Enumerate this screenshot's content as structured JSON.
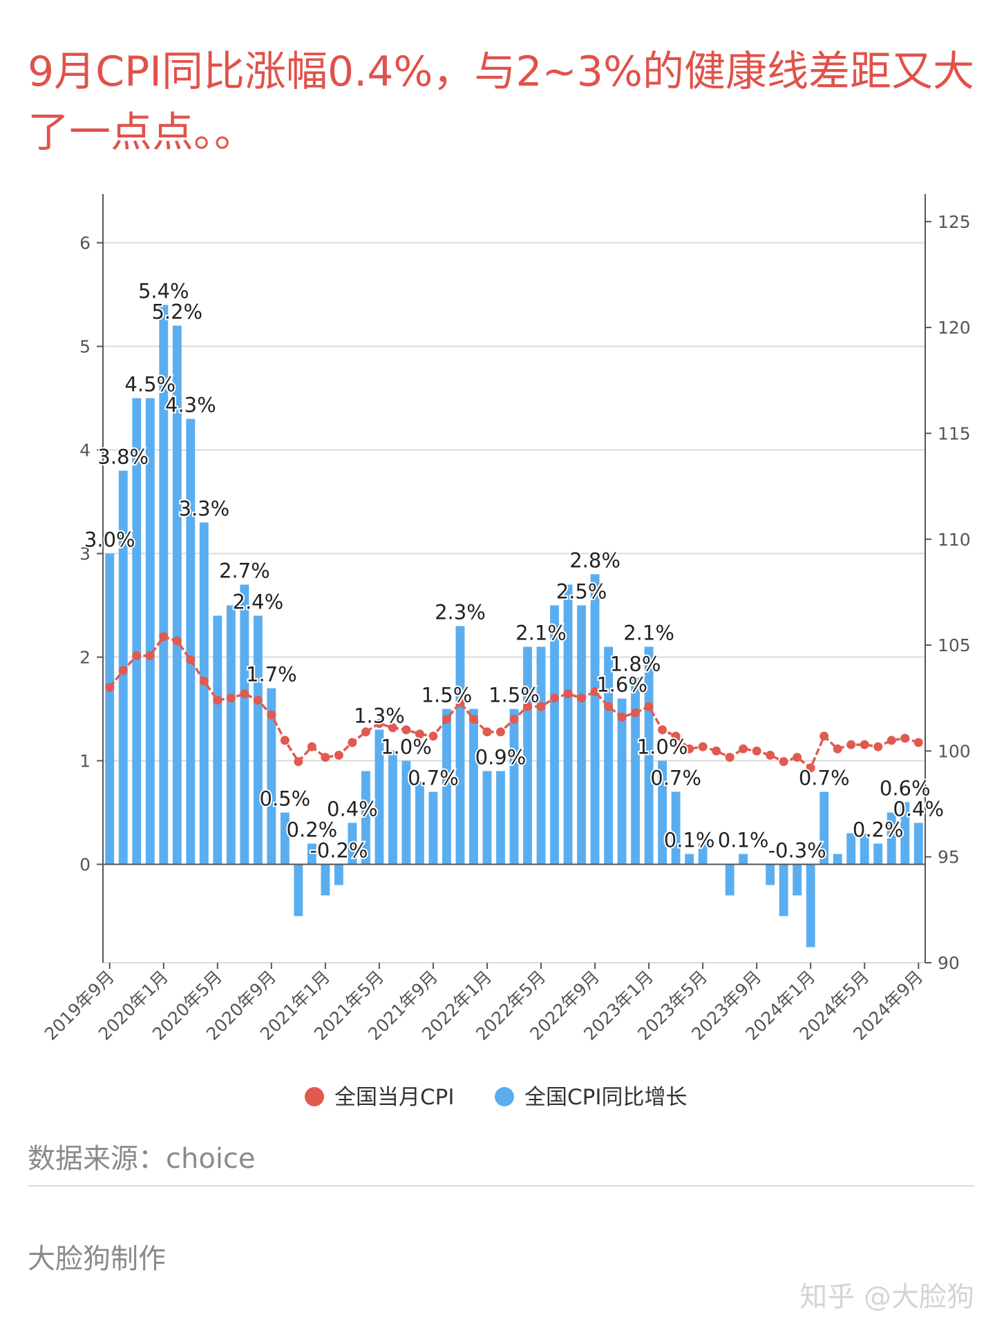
{
  "title": "9月CPI同比涨幅0.4%，与2~3%的健康线差距又大了一点点。。",
  "source": "数据来源：choice",
  "maker": "大脸狗制作",
  "watermark": "知乎 @大脸狗",
  "chart_data": {
    "type": "bar+line",
    "categories": [
      "2019年9月",
      "2019年10月",
      "2019年11月",
      "2019年12月",
      "2020年1月",
      "2020年2月",
      "2020年3月",
      "2020年4月",
      "2020年5月",
      "2020年6月",
      "2020年7月",
      "2020年8月",
      "2020年9月",
      "2020年10月",
      "2020年11月",
      "2020年12月",
      "2021年1月",
      "2021年2月",
      "2021年3月",
      "2021年4月",
      "2021年5月",
      "2021年6月",
      "2021年7月",
      "2021年8月",
      "2021年9月",
      "2021年10月",
      "2021年11月",
      "2021年12月",
      "2022年1月",
      "2022年2月",
      "2022年3月",
      "2022年4月",
      "2022年5月",
      "2022年6月",
      "2022年7月",
      "2022年8月",
      "2022年9月",
      "2022年10月",
      "2022年11月",
      "2022年12月",
      "2023年1月",
      "2023年2月",
      "2023年3月",
      "2023年4月",
      "2023年5月",
      "2023年6月",
      "2023年7月",
      "2023年8月",
      "2023年9月",
      "2023年10月",
      "2023年11月",
      "2023年12月",
      "2024年1月",
      "2024年2月",
      "2024年3月",
      "2024年4月",
      "2024年5月",
      "2024年6月",
      "2024年7月",
      "2024年8月",
      "2024年9月"
    ],
    "x_tick_labels": [
      "2019年9月",
      "2020年1月",
      "2020年5月",
      "2020年9月",
      "2021年1月",
      "2021年5月",
      "2021年9月",
      "2022年1月",
      "2022年5月",
      "2022年9月",
      "2023年1月",
      "2023年5月",
      "2023年9月",
      "2024年1月",
      "2024年5月",
      "2024年9月"
    ],
    "series": [
      {
        "name": "全国当月CPI",
        "type": "line",
        "axis": "right",
        "color": "#e05a50",
        "values": [
          103.0,
          103.8,
          104.5,
          104.5,
          105.4,
          105.2,
          104.3,
          103.3,
          102.4,
          102.5,
          102.7,
          102.4,
          101.7,
          100.5,
          99.5,
          100.2,
          99.7,
          99.8,
          100.4,
          100.9,
          101.3,
          101.1,
          101.0,
          100.8,
          100.7,
          101.5,
          102.3,
          101.5,
          100.9,
          100.9,
          101.5,
          102.1,
          102.1,
          102.5,
          102.7,
          102.5,
          102.8,
          102.1,
          101.6,
          101.8,
          102.1,
          101.0,
          100.7,
          100.1,
          100.2,
          100.0,
          99.7,
          100.1,
          100.0,
          99.8,
          99.5,
          99.7,
          99.2,
          100.7,
          100.1,
          100.3,
          100.3,
          100.2,
          100.5,
          100.6,
          100.4
        ]
      },
      {
        "name": "全国CPI同比增长",
        "type": "bar",
        "axis": "left",
        "color": "#5aaef0",
        "values": [
          3.0,
          3.8,
          4.5,
          4.5,
          5.4,
          5.2,
          4.3,
          3.3,
          2.4,
          2.5,
          2.7,
          2.4,
          1.7,
          0.5,
          -0.5,
          0.2,
          -0.3,
          -0.2,
          0.4,
          0.9,
          1.3,
          1.1,
          1.0,
          0.8,
          0.7,
          1.5,
          2.3,
          1.5,
          0.9,
          0.9,
          1.5,
          2.1,
          2.1,
          2.5,
          2.7,
          2.5,
          2.8,
          2.1,
          1.6,
          1.8,
          2.1,
          1.0,
          0.7,
          0.1,
          0.2,
          0.0,
          -0.3,
          0.1,
          0.0,
          -0.2,
          -0.5,
          -0.3,
          -0.8,
          0.7,
          0.1,
          0.3,
          0.3,
          0.2,
          0.5,
          0.6,
          0.4
        ]
      }
    ],
    "data_labels": [
      {
        "month": "2019年9月",
        "text": "3.0%"
      },
      {
        "month": "2019年10月",
        "text": "3.8%"
      },
      {
        "month": "2019年12月",
        "text": "4.5%"
      },
      {
        "month": "2020年1月",
        "text": "5.4%"
      },
      {
        "month": "2020年2月",
        "text": "5.2%"
      },
      {
        "month": "2020年3月",
        "text": "4.3%"
      },
      {
        "month": "2020年4月",
        "text": "3.3%"
      },
      {
        "month": "2020年7月",
        "text": "2.7%"
      },
      {
        "month": "2020年8月",
        "text": "2.4%"
      },
      {
        "month": "2020年9月",
        "text": "1.7%"
      },
      {
        "month": "2020年10月",
        "text": "0.5%"
      },
      {
        "month": "2020年12月",
        "text": "0.2%"
      },
      {
        "month": "2021年2月",
        "text": "-0.2%"
      },
      {
        "month": "2021年3月",
        "text": "0.4%"
      },
      {
        "month": "2021年5月",
        "text": "1.3%"
      },
      {
        "month": "2021年7月",
        "text": "1.0%"
      },
      {
        "month": "2021年9月",
        "text": "0.7%"
      },
      {
        "month": "2021年10月",
        "text": "1.5%"
      },
      {
        "month": "2021年11月",
        "text": "2.3%"
      },
      {
        "month": "2022年2月",
        "text": "0.9%"
      },
      {
        "month": "2022年3月",
        "text": "1.5%"
      },
      {
        "month": "2022年5月",
        "text": "2.1%"
      },
      {
        "month": "2022年8月",
        "text": "2.5%"
      },
      {
        "month": "2022年9月",
        "text": "2.8%"
      },
      {
        "month": "2022年11月",
        "text": "1.6%"
      },
      {
        "month": "2022年12月",
        "text": "1.8%"
      },
      {
        "month": "2023年1月",
        "text": "2.1%"
      },
      {
        "month": "2023年2月",
        "text": "1.0%"
      },
      {
        "month": "2023年3月",
        "text": "0.7%"
      },
      {
        "month": "2023年4月",
        "text": "0.1%"
      },
      {
        "month": "2023年8月",
        "text": "0.1%"
      },
      {
        "month": "2023年12月",
        "text": "-0.3%"
      },
      {
        "month": "2024年2月",
        "text": "0.7%"
      },
      {
        "month": "2024年6月",
        "text": "0.2%"
      },
      {
        "month": "2024年8月",
        "text": "0.6%"
      },
      {
        "month": "2024年9月",
        "text": "0.4%"
      }
    ],
    "y_left": {
      "ticks": [
        0,
        1,
        2,
        3,
        4,
        5,
        6
      ],
      "range": [
        -0.95,
        6.47
      ]
    },
    "y_right": {
      "ticks": [
        90,
        95,
        100,
        105,
        110,
        115,
        120,
        125
      ],
      "range": [
        90,
        126.3
      ]
    },
    "grid": true,
    "legend": "bottom"
  }
}
